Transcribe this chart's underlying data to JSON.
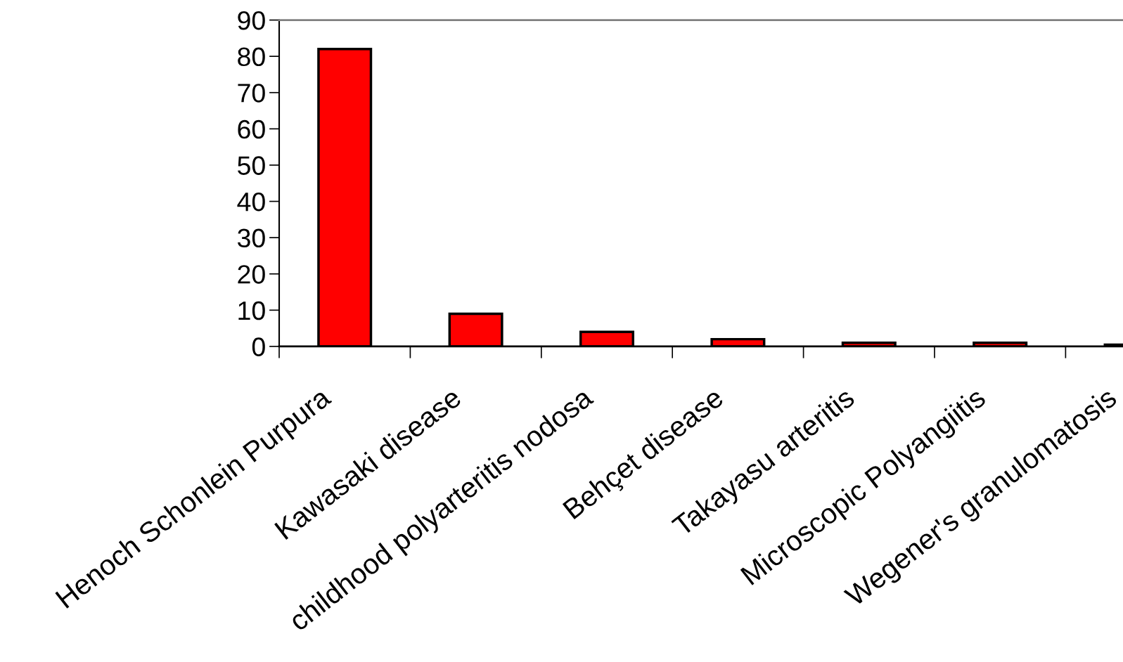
{
  "chart_data": {
    "type": "bar",
    "categories": [
      "Henoch Schonlein Purpura",
      "Kawasaki disease",
      "childhood polyarteritis nodosa",
      "Behçet disease",
      "Takayasu arteritis",
      "Microscopic Polyangiitis",
      "Wegener's granulomatosis"
    ],
    "values": [
      82,
      9,
      4,
      2,
      1,
      1,
      0.5
    ],
    "color": "#ff0000",
    "ylim": [
      0,
      90
    ],
    "yticks": [
      0,
      10,
      20,
      30,
      40,
      50,
      60,
      70,
      80,
      90
    ],
    "grid": false
  }
}
